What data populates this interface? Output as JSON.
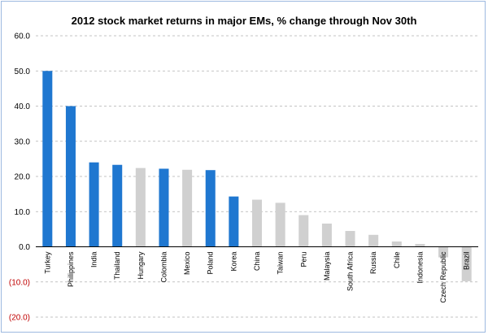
{
  "chart_data": {
    "type": "bar",
    "title": "2012 stock market returns in major EMs, % change through Nov 30th",
    "xlabel": "",
    "ylabel": "",
    "ylim": [
      -20,
      60
    ],
    "yticks": [
      {
        "value": 60,
        "label": "60.0"
      },
      {
        "value": 50,
        "label": "50.0"
      },
      {
        "value": 40,
        "label": "40.0"
      },
      {
        "value": 30,
        "label": "30.0"
      },
      {
        "value": 20,
        "label": "20.0"
      },
      {
        "value": 10,
        "label": "10.0"
      },
      {
        "value": 0,
        "label": "0.0"
      },
      {
        "value": -10,
        "label": "(10.0)"
      },
      {
        "value": -20,
        "label": "(20.0)"
      }
    ],
    "grid": true,
    "categories": [
      "Turkey",
      "Philippines",
      "India",
      "Thailand",
      "Hungary",
      "Colombia",
      "Mexico",
      "Poland",
      "Korea",
      "China",
      "Taiwan",
      "Peru",
      "Malaysia",
      "South Africa",
      "Russia",
      "Chile",
      "Indonesia",
      "Czech Republic",
      "Brazil"
    ],
    "values": [
      50.0,
      40.0,
      24.0,
      23.3,
      22.4,
      22.2,
      21.9,
      21.8,
      14.3,
      13.4,
      12.5,
      9.0,
      6.6,
      4.5,
      3.4,
      1.5,
      0.8,
      -3.0,
      -9.8
    ],
    "highlighted": [
      true,
      true,
      true,
      true,
      false,
      true,
      false,
      true,
      true,
      false,
      false,
      false,
      false,
      false,
      false,
      false,
      false,
      false,
      false
    ],
    "colors": {
      "highlight": "#1f77d0",
      "default": "#d0d0d0",
      "negative_tick": "#c00000",
      "grid": "#b0b0b0"
    }
  }
}
